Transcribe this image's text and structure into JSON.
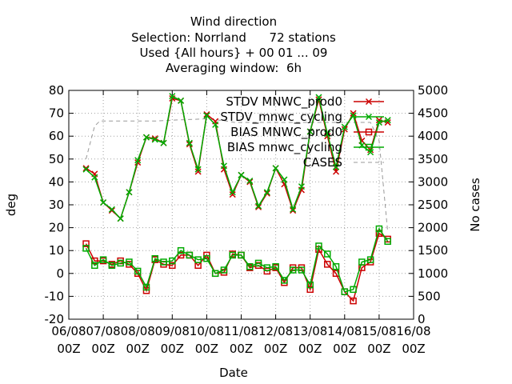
{
  "chart_data": {
    "type": "line",
    "title_lines": [
      "Wind direction",
      "Selection: Norrland      72 stations",
      "Used {All hours} + 00 01 ... 09",
      "Averaging window:  6h"
    ],
    "xlabel": "Date",
    "ylabel": "deg",
    "y2label": "No cases",
    "ylim": [
      -20,
      80
    ],
    "y2lim": [
      0,
      5000
    ],
    "yticks": [
      "-20",
      "-10",
      "0",
      "10",
      "20",
      "30",
      "40",
      "50",
      "60",
      "70",
      "80"
    ],
    "y2ticks": [
      "0",
      "500",
      "1000",
      "1500",
      "2000",
      "2500",
      "3000",
      "3500",
      "4000",
      "4500",
      "5000"
    ],
    "xticks": [
      {
        "top": "06/08",
        "bottom": "00Z"
      },
      {
        "top": "07/08",
        "bottom": "00Z"
      },
      {
        "top": "08/08",
        "bottom": "00Z"
      },
      {
        "top": "09/08",
        "bottom": "00Z"
      },
      {
        "top": "10/08",
        "bottom": "00Z"
      },
      {
        "top": "11/08",
        "bottom": "00Z"
      },
      {
        "top": "12/08",
        "bottom": "00Z"
      },
      {
        "top": "13/08",
        "bottom": "00Z"
      },
      {
        "top": "14/08",
        "bottom": "00Z"
      },
      {
        "top": "15/08",
        "bottom": "00Z"
      },
      {
        "top": "16/08",
        "bottom": "00Z"
      }
    ],
    "x_unit": "days after 06/08 00Z",
    "x": [
      0.5,
      0.75,
      1,
      1.25,
      1.5,
      1.75,
      2,
      2.25,
      2.5,
      2.75,
      3,
      3.25,
      3.5,
      3.75,
      4,
      4.25,
      4.5,
      4.75,
      5,
      5.25,
      5.5,
      5.75,
      6,
      6.25,
      6.5,
      6.75,
      7,
      7.25,
      7.5,
      7.75,
      8,
      8.25,
      8.5,
      8.75,
      9,
      9.25
    ],
    "series": [
      {
        "name": "STDV MNWC_prod0",
        "color": "#cc0000",
        "marker": "x",
        "axis": "y",
        "values": [
          46,
          43.5,
          31,
          27.5,
          24,
          35.5,
          48.5,
          59.5,
          59,
          57,
          76.5,
          75.5,
          56.5,
          44.5,
          69.5,
          66.5,
          45.5,
          34.5,
          43,
          40,
          29,
          35,
          46,
          39,
          27.5,
          36.5,
          62,
          76,
          60,
          44.5,
          63,
          70,
          58,
          54,
          67,
          66
        ]
      },
      {
        "name": "STDV_mnwc_cycling",
        "color": "#00aa00",
        "marker": "x",
        "axis": "y",
        "values": [
          45.5,
          42,
          31,
          28,
          24,
          35.5,
          49.5,
          59.5,
          58.5,
          57,
          77.5,
          75.5,
          57,
          45.5,
          69,
          65,
          47,
          35.5,
          43,
          40.5,
          29.5,
          35.5,
          46,
          41,
          28,
          38,
          62,
          77,
          61,
          46.5,
          64,
          69,
          56,
          53,
          66,
          67
        ]
      },
      {
        "name": "BIAS MNWC_prod0",
        "color": "#cc0000",
        "marker": "square",
        "axis": "y",
        "values": [
          13,
          5.5,
          5.5,
          4,
          5.5,
          4,
          0,
          -7.5,
          6,
          4,
          3.5,
          8,
          8,
          3.5,
          8,
          0,
          0.5,
          8.5,
          8,
          2.5,
          3.5,
          1,
          2.5,
          -4,
          2.5,
          2.5,
          -7,
          10.5,
          4,
          0,
          -8,
          -12,
          2.5,
          5,
          17.5,
          15
        ]
      },
      {
        "name": "BIAS mnwc_cycling",
        "color": "#00aa00",
        "marker": "square",
        "axis": "y",
        "values": [
          11,
          3.5,
          6,
          3.5,
          4.5,
          5,
          1,
          -6,
          6.5,
          5,
          5.5,
          10,
          8,
          6,
          6.5,
          0,
          1.5,
          8,
          8,
          3,
          4.5,
          2.5,
          3,
          -3,
          1.5,
          1.5,
          -5,
          12,
          8.5,
          3,
          -8,
          -7,
          5,
          6,
          19.5,
          14
        ]
      },
      {
        "name": "CASES",
        "color": "#999999",
        "dashed": true,
        "axis": "y2",
        "x": [
          0.5,
          0.75,
          0.9,
          2.5,
          3.0,
          4.0,
          4.5,
          4.8,
          7.0,
          8.75,
          9.0,
          9.25
        ],
        "values": [
          3500,
          4220,
          4330,
          4330,
          4350,
          4380,
          4340,
          4300,
          4300,
          4300,
          3900,
          1900
        ]
      }
    ],
    "legend_position": "top-right",
    "grid": true
  }
}
